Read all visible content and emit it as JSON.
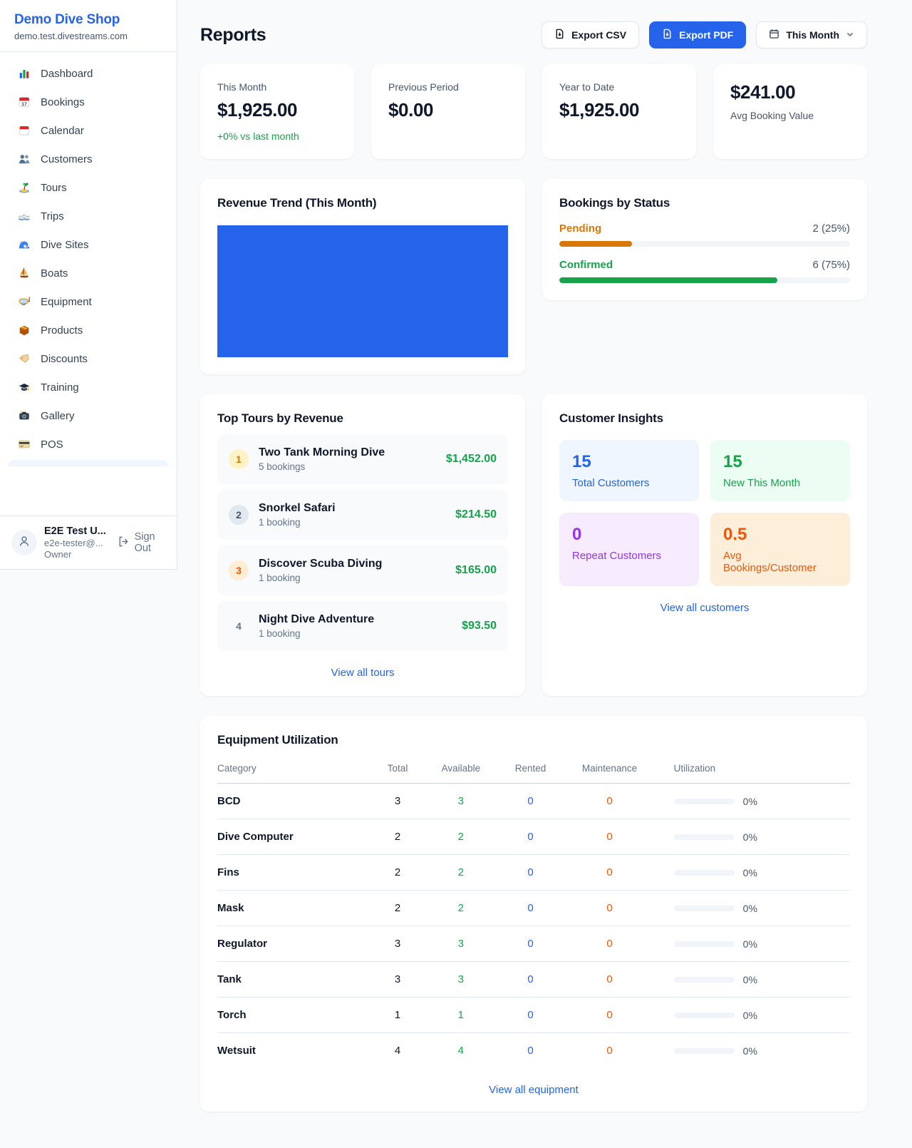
{
  "colors": {
    "accent": "#2563eb",
    "green": "#16a34a",
    "pending_orange": "#d97706",
    "maintenance_orange": "#ea580c",
    "purple": "#9333ea",
    "page_bg": "#f8fafc"
  },
  "brand": {
    "name": "Demo Dive Shop",
    "domain": "demo.test.divestreams.com"
  },
  "sidebar": {
    "items": [
      {
        "label": "Dashboard",
        "icon": "bar-chart-icon"
      },
      {
        "label": "Bookings",
        "icon": "calendar-date-icon"
      },
      {
        "label": "Calendar",
        "icon": "tear-off-calendar-icon"
      },
      {
        "label": "Customers",
        "icon": "people-icon"
      },
      {
        "label": "Tours",
        "icon": "island-icon"
      },
      {
        "label": "Trips",
        "icon": "speedboat-icon"
      },
      {
        "label": "Dive Sites",
        "icon": "wave-icon"
      },
      {
        "label": "Boats",
        "icon": "sailboat-icon"
      },
      {
        "label": "Equipment",
        "icon": "dive-mask-icon"
      },
      {
        "label": "Products",
        "icon": "package-icon"
      },
      {
        "label": "Discounts",
        "icon": "tag-icon"
      },
      {
        "label": "Training",
        "icon": "graduation-cap-icon"
      },
      {
        "label": "Gallery",
        "icon": "camera-icon"
      },
      {
        "label": "POS",
        "icon": "credit-card-icon"
      }
    ],
    "user": {
      "name": "E2E Test U...",
      "email": "e2e-tester@...",
      "role": "Owner",
      "sign_out_label": "Sign Out"
    }
  },
  "header": {
    "title": "Reports",
    "export_csv_label": "Export CSV",
    "export_pdf_label": "Export PDF",
    "period_label": "This Month"
  },
  "stats": [
    {
      "label": "This Month",
      "value": "$1,925.00",
      "delta": "+0% vs last month"
    },
    {
      "label": "Previous Period",
      "value": "$0.00"
    },
    {
      "label": "Year to Date",
      "value": "$1,925.00"
    },
    {
      "label": "Avg Booking Value",
      "value": "$241.00"
    }
  ],
  "revenue_trend": {
    "title": "Revenue Trend (This Month)"
  },
  "chart_data": [
    {
      "type": "area",
      "title": "Revenue Trend (This Month)",
      "series": [
        {
          "name": "Revenue",
          "values": [
            1925
          ]
        }
      ],
      "xlabel": "",
      "ylabel": "",
      "color": "#2563eb",
      "note": "single-point area chart rendered as a solid filled block, no visible axes"
    },
    {
      "type": "bar",
      "title": "Bookings by Status",
      "categories": [
        "Pending",
        "Confirmed"
      ],
      "values": [
        2,
        6
      ],
      "percent": [
        25,
        75
      ],
      "colors": [
        "#d97706",
        "#16a34a"
      ]
    }
  ],
  "bookings_by_status": {
    "title": "Bookings by Status",
    "rows": [
      {
        "label": "Pending",
        "count": "2 (25%)",
        "pct": 25,
        "color": "#d97706"
      },
      {
        "label": "Confirmed",
        "count": "6 (75%)",
        "pct": 75,
        "color": "#16a34a"
      }
    ]
  },
  "top_tours": {
    "title": "Top Tours by Revenue",
    "rows": [
      {
        "rank": "1",
        "name": "Two Tank Morning Dive",
        "bookings": "5 bookings",
        "revenue": "$1,452.00",
        "badge_bg": "#fef3c7",
        "badge_color": "#d97706"
      },
      {
        "rank": "2",
        "name": "Snorkel Safari",
        "bookings": "1 booking",
        "revenue": "$214.50",
        "badge_bg": "#e2e8f0",
        "badge_color": "#475569"
      },
      {
        "rank": "3",
        "name": "Discover Scuba Diving",
        "bookings": "1 booking",
        "revenue": "$165.00",
        "badge_bg": "#ffedd5",
        "badge_color": "#ea580c"
      },
      {
        "rank": "4",
        "name": "Night Dive Adventure",
        "bookings": "1 booking",
        "revenue": "$93.50",
        "badge_bg": "transparent",
        "badge_color": "#64748b"
      }
    ],
    "link": "View all tours"
  },
  "customer_insights": {
    "title": "Customer Insights",
    "tiles": [
      {
        "value": "15",
        "label": "Total Customers",
        "color": "#2563eb",
        "bg": "#eff6ff"
      },
      {
        "value": "15",
        "label": "New This Month",
        "color": "#16a34a",
        "bg": "#ecfdf3"
      },
      {
        "value": "0",
        "label": "Repeat Customers",
        "color": "#9333ea",
        "bg": "#f6ecfe"
      },
      {
        "value": "0.5",
        "label": "Avg Bookings/Customer",
        "color": "#ea580c",
        "bg": "#fdeeda"
      }
    ],
    "link": "View all customers"
  },
  "equipment": {
    "title": "Equipment Utilization",
    "columns": [
      "Category",
      "Total",
      "Available",
      "Rented",
      "Maintenance",
      "Utilization"
    ],
    "rows": [
      {
        "category": "BCD",
        "total": "3",
        "available": "3",
        "rented": "0",
        "maintenance": "0",
        "utilization": "0%"
      },
      {
        "category": "Dive Computer",
        "total": "2",
        "available": "2",
        "rented": "0",
        "maintenance": "0",
        "utilization": "0%"
      },
      {
        "category": "Fins",
        "total": "2",
        "available": "2",
        "rented": "0",
        "maintenance": "0",
        "utilization": "0%"
      },
      {
        "category": "Mask",
        "total": "2",
        "available": "2",
        "rented": "0",
        "maintenance": "0",
        "utilization": "0%"
      },
      {
        "category": "Regulator",
        "total": "3",
        "available": "3",
        "rented": "0",
        "maintenance": "0",
        "utilization": "0%"
      },
      {
        "category": "Tank",
        "total": "3",
        "available": "3",
        "rented": "0",
        "maintenance": "0",
        "utilization": "0%"
      },
      {
        "category": "Torch",
        "total": "1",
        "available": "1",
        "rented": "0",
        "maintenance": "0",
        "utilization": "0%"
      },
      {
        "category": "Wetsuit",
        "total": "4",
        "available": "4",
        "rented": "0",
        "maintenance": "0",
        "utilization": "0%"
      }
    ],
    "link": "View all equipment"
  }
}
